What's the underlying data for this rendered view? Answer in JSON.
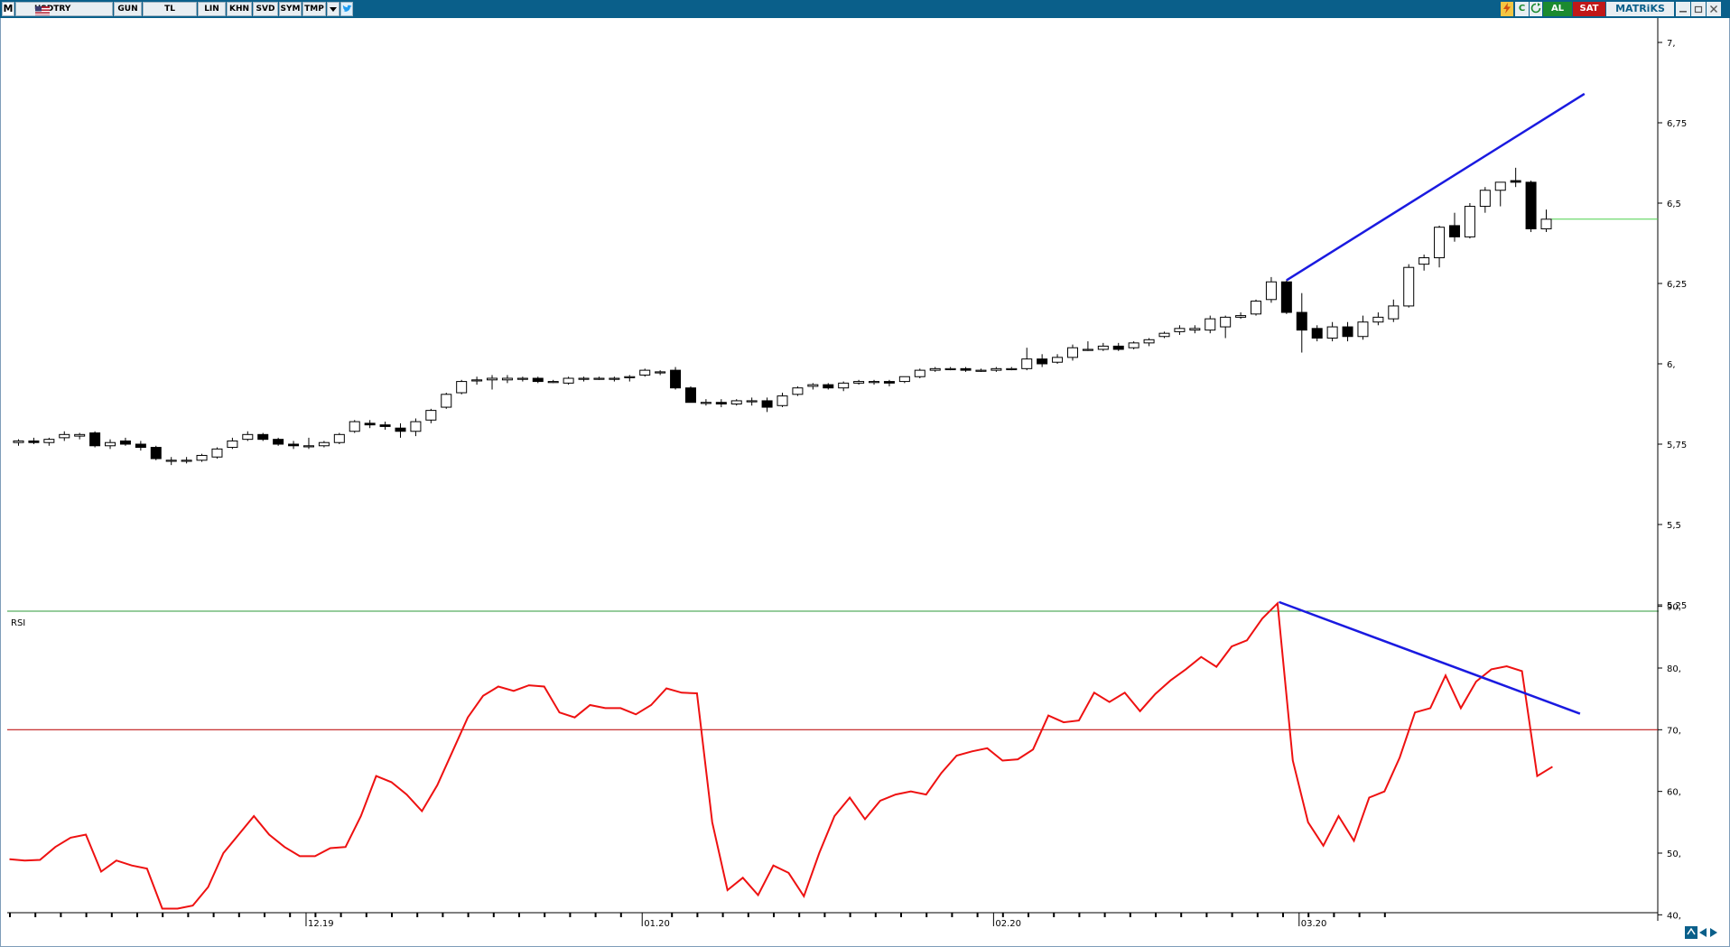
{
  "toolbar": {
    "menu_m": "M",
    "symbol": "USDTRY",
    "buttons": [
      "GUN",
      "TL",
      "LIN",
      "KHN",
      "SVD",
      "SYM",
      "TMP"
    ],
    "c_label": "C",
    "buy_label": "AL",
    "sell_label": "SAT",
    "brand": "MATRiKS",
    "colors": {
      "titlebar": "#0a5f8a",
      "buy": "#1b8a2f",
      "sell": "#c01818"
    }
  },
  "chart_data": [
    {
      "type": "candlestick",
      "symbol": "USDTRY",
      "ylim": [
        5.25,
        7.0
      ],
      "y_ticks": [
        "5,25",
        "5,5",
        "5,75",
        "6,",
        "6,25",
        "6,5",
        "6,75",
        "7,"
      ],
      "x_ticks": [
        {
          "index": 19,
          "label": "12.19"
        },
        {
          "index": 41,
          "label": "01.20"
        },
        {
          "index": 64,
          "label": "02.20"
        },
        {
          "index": 84,
          "label": "03.20"
        }
      ],
      "candles": [
        [
          5.755,
          5.765,
          5.745,
          5.76
        ],
        [
          5.76,
          5.77,
          5.75,
          5.755
        ],
        [
          5.755,
          5.77,
          5.745,
          5.765
        ],
        [
          5.77,
          5.79,
          5.76,
          5.78
        ],
        [
          5.775,
          5.785,
          5.765,
          5.78
        ],
        [
          5.785,
          5.79,
          5.74,
          5.745
        ],
        [
          5.745,
          5.765,
          5.735,
          5.755
        ],
        [
          5.76,
          5.77,
          5.745,
          5.75
        ],
        [
          5.75,
          5.76,
          5.73,
          5.74
        ],
        [
          5.74,
          5.745,
          5.7,
          5.705
        ],
        [
          5.7,
          5.71,
          5.685,
          5.7
        ],
        [
          5.7,
          5.71,
          5.69,
          5.7
        ],
        [
          5.7,
          5.72,
          5.695,
          5.715
        ],
        [
          5.71,
          5.74,
          5.705,
          5.735
        ],
        [
          5.74,
          5.77,
          5.735,
          5.76
        ],
        [
          5.765,
          5.79,
          5.76,
          5.78
        ],
        [
          5.78,
          5.785,
          5.76,
          5.765
        ],
        [
          5.765,
          5.77,
          5.745,
          5.75
        ],
        [
          5.75,
          5.76,
          5.735,
          5.745
        ],
        [
          5.745,
          5.77,
          5.735,
          5.745
        ],
        [
          5.745,
          5.76,
          5.74,
          5.755
        ],
        [
          5.755,
          5.785,
          5.75,
          5.78
        ],
        [
          5.79,
          5.825,
          5.785,
          5.82
        ],
        [
          5.815,
          5.825,
          5.8,
          5.81
        ],
        [
          5.81,
          5.82,
          5.795,
          5.805
        ],
        [
          5.8,
          5.815,
          5.77,
          5.79
        ],
        [
          5.79,
          5.83,
          5.775,
          5.82
        ],
        [
          5.825,
          5.86,
          5.815,
          5.855
        ],
        [
          5.865,
          5.91,
          5.86,
          5.905
        ],
        [
          5.91,
          5.95,
          5.905,
          5.945
        ],
        [
          5.95,
          5.96,
          5.935,
          5.95
        ],
        [
          5.95,
          5.965,
          5.92,
          5.955
        ],
        [
          5.95,
          5.965,
          5.94,
          5.955
        ],
        [
          5.955,
          5.96,
          5.945,
          5.955
        ],
        [
          5.955,
          5.96,
          5.94,
          5.945
        ],
        [
          5.945,
          5.95,
          5.94,
          5.945
        ],
        [
          5.94,
          5.96,
          5.935,
          5.955
        ],
        [
          5.955,
          5.96,
          5.945,
          5.955
        ],
        [
          5.955,
          5.96,
          5.95,
          5.955
        ],
        [
          5.955,
          5.96,
          5.945,
          5.955
        ],
        [
          5.96,
          5.965,
          5.945,
          5.96
        ],
        [
          5.965,
          5.985,
          5.96,
          5.98
        ],
        [
          5.975,
          5.98,
          5.965,
          5.975
        ],
        [
          5.98,
          5.99,
          5.92,
          5.925
        ],
        [
          5.925,
          5.93,
          5.88,
          5.88
        ],
        [
          5.88,
          5.89,
          5.87,
          5.88
        ],
        [
          5.88,
          5.89,
          5.865,
          5.875
        ],
        [
          5.875,
          5.89,
          5.87,
          5.885
        ],
        [
          5.885,
          5.895,
          5.87,
          5.885
        ],
        [
          5.885,
          5.895,
          5.85,
          5.865
        ],
        [
          5.87,
          5.91,
          5.865,
          5.9
        ],
        [
          5.905,
          5.93,
          5.9,
          5.925
        ],
        [
          5.93,
          5.94,
          5.92,
          5.935
        ],
        [
          5.935,
          5.94,
          5.92,
          5.925
        ],
        [
          5.925,
          5.945,
          5.915,
          5.94
        ],
        [
          5.94,
          5.95,
          5.935,
          5.945
        ],
        [
          5.945,
          5.95,
          5.935,
          5.945
        ],
        [
          5.945,
          5.95,
          5.93,
          5.94
        ],
        [
          5.945,
          5.96,
          5.94,
          5.96
        ],
        [
          5.96,
          5.985,
          5.955,
          5.98
        ],
        [
          5.98,
          5.99,
          5.975,
          5.985
        ],
        [
          5.985,
          5.99,
          5.98,
          5.985
        ],
        [
          5.985,
          5.99,
          5.975,
          5.98
        ],
        [
          5.98,
          5.985,
          5.975,
          5.98
        ],
        [
          5.98,
          5.99,
          5.975,
          5.985
        ],
        [
          5.985,
          5.99,
          5.98,
          5.985
        ],
        [
          5.985,
          6.05,
          5.98,
          6.015
        ],
        [
          6.015,
          6.03,
          5.99,
          6.0
        ],
        [
          6.005,
          6.03,
          6.0,
          6.02
        ],
        [
          6.02,
          6.06,
          6.01,
          6.05
        ],
        [
          6.045,
          6.07,
          6.04,
          6.045
        ],
        [
          6.045,
          6.065,
          6.04,
          6.055
        ],
        [
          6.055,
          6.065,
          6.04,
          6.045
        ],
        [
          6.05,
          6.07,
          6.045,
          6.065
        ],
        [
          6.065,
          6.08,
          6.055,
          6.075
        ],
        [
          6.085,
          6.1,
          6.08,
          6.095
        ],
        [
          6.1,
          6.12,
          6.09,
          6.11
        ],
        [
          6.105,
          6.12,
          6.095,
          6.11
        ],
        [
          6.105,
          6.15,
          6.095,
          6.14
        ],
        [
          6.115,
          6.15,
          6.08,
          6.145
        ],
        [
          6.145,
          6.16,
          6.14,
          6.15
        ],
        [
          6.155,
          6.2,
          6.15,
          6.195
        ],
        [
          6.2,
          6.27,
          6.19,
          6.255
        ],
        [
          6.255,
          6.26,
          6.155,
          6.16
        ],
        [
          6.16,
          6.22,
          6.035,
          6.105
        ],
        [
          6.11,
          6.12,
          6.07,
          6.08
        ],
        [
          6.08,
          6.13,
          6.07,
          6.115
        ],
        [
          6.115,
          6.13,
          6.07,
          6.085
        ],
        [
          6.085,
          6.15,
          6.075,
          6.13
        ],
        [
          6.13,
          6.16,
          6.12,
          6.145
        ],
        [
          6.14,
          6.2,
          6.13,
          6.18
        ],
        [
          6.18,
          6.31,
          6.175,
          6.3
        ],
        [
          6.31,
          6.34,
          6.29,
          6.33
        ],
        [
          6.33,
          6.43,
          6.3,
          6.425
        ],
        [
          6.43,
          6.47,
          6.38,
          6.395
        ],
        [
          6.395,
          6.5,
          6.39,
          6.49
        ],
        [
          6.49,
          6.55,
          6.47,
          6.54
        ],
        [
          6.54,
          6.56,
          6.49,
          6.565
        ],
        [
          6.57,
          6.61,
          6.55,
          6.565
        ],
        [
          6.565,
          6.57,
          6.41,
          6.42
        ],
        [
          6.42,
          6.48,
          6.41,
          6.45
        ]
      ],
      "last_price": 6.45,
      "trendline": {
        "from": {
          "index": 83,
          "value": 6.26
        },
        "to": {
          "index": 102.5,
          "value": 6.84
        }
      }
    },
    {
      "type": "line",
      "label": "RSI",
      "ylim": [
        38,
        92
      ],
      "y_ticks": [
        "40,",
        "50,",
        "60,",
        "70,",
        "80,",
        "90,"
      ],
      "reference_line": 70,
      "values": [
        49,
        48.8,
        48.9,
        51,
        52.5,
        53,
        47,
        48.8,
        48,
        47.5,
        41,
        41,
        41.5,
        44.5,
        50,
        53,
        56,
        53,
        51,
        49.5,
        49.5,
        50.8,
        51,
        56,
        62.5,
        61.5,
        59.5,
        56.8,
        61,
        66.5,
        72,
        75.5,
        77,
        76.3,
        77.2,
        77,
        72.8,
        72,
        74,
        73.5,
        73.5,
        72.5,
        74,
        76.7,
        76,
        75.9,
        55,
        44,
        46,
        43.2,
        48,
        46.8,
        43,
        50,
        56,
        59,
        55.5,
        58.5,
        59.5,
        60,
        59.5,
        63,
        65.8,
        66.5,
        67,
        65,
        65.2,
        66.8,
        72.3,
        71.2,
        71.5,
        76,
        74.5,
        76,
        73,
        75.8,
        78,
        79.8,
        81.8,
        80.2,
        83.5,
        84.5,
        88,
        90.5,
        65,
        55,
        51.2,
        56,
        52,
        59,
        60,
        65.5,
        72.8,
        73.5,
        78.8,
        73.5,
        77.8,
        79.8,
        80.3,
        79.5,
        62.5,
        64
      ],
      "trendline": {
        "from": {
          "index": 83.1,
          "value": 90.7
        },
        "to": {
          "index": 102.8,
          "value": 72.6
        }
      }
    }
  ]
}
